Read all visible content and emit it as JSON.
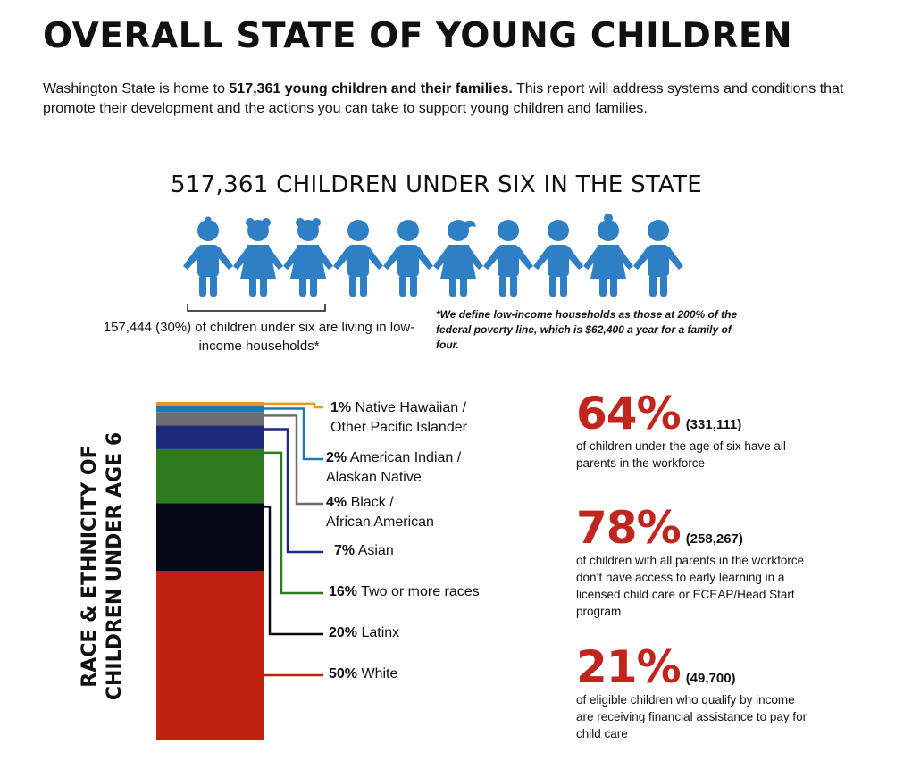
{
  "title": "OVERALL STATE OF YOUNG CHILDREN",
  "intro": {
    "before": "Washington State is home to ",
    "bold": "517,361 young children and their families.",
    "after": " This report will address systems and conditions that promote their development and the actions you can take to support young children and families."
  },
  "children_heading": "517,361 CHILDREN UNDER SIX IN THE STATE",
  "low_income_text": "157,444 (30%) of children under six are living in low-income households*",
  "footnote": "*We define low-income households as those at 200% of the federal poverty line, which is $62,400 a year for a family of four.",
  "icon_color": "#2f7fc4",
  "race_title_line1": "RACE & ETHNICITY OF",
  "race_title_line2": "CHILDREN UNDER AGE 6",
  "race": [
    {
      "pct": "1%",
      "label1": "Native Hawaiian /",
      "label2": "Other Pacific Islander",
      "value": 1,
      "color": "#f0961e"
    },
    {
      "pct": "2%",
      "label1": "American Indian /",
      "label2": "Alaskan Native",
      "value": 2,
      "color": "#1f78b4"
    },
    {
      "pct": "4%",
      "label1": "Black /",
      "label2": "African American",
      "value": 4,
      "color": "#6d6e71"
    },
    {
      "pct": "7%",
      "label1": "Asian",
      "label2": "",
      "value": 7,
      "color": "#1c2a7a"
    },
    {
      "pct": "16%",
      "label1": "Two or more races",
      "label2": "",
      "value": 16,
      "color": "#2f7a1e"
    },
    {
      "pct": "20%",
      "label1": "Latinx",
      "label2": "",
      "value": 20,
      "color": "#060a16"
    },
    {
      "pct": "50%",
      "label1": "White",
      "label2": "",
      "value": 50,
      "color": "#c0200f"
    }
  ],
  "stats": [
    {
      "big": "64%",
      "count": "(331,111)",
      "text": "of children under the age of six have all parents in the workforce"
    },
    {
      "big": "78%",
      "count": "(258,267)",
      "text": "of children with all parents in the workforce don’t have access to early learning in a licensed child care or ECEAP/Head Start program"
    },
    {
      "big": "21%",
      "count": "(49,700)",
      "text": "of eligible children who qualify by income are receiving financial assistance to pay for child care"
    }
  ]
}
